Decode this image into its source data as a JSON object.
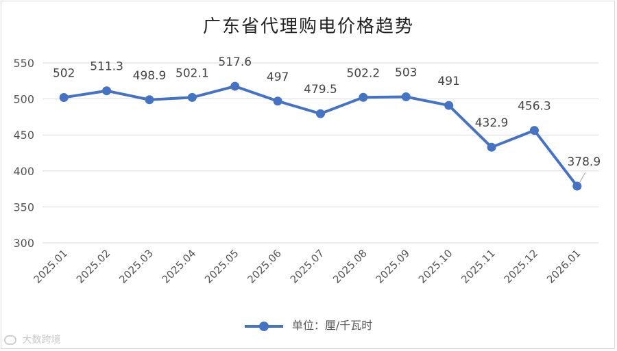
{
  "chart_data": {
    "type": "line",
    "title": "广东省代理购电价格趋势",
    "categories": [
      "2025.01",
      "2025.02",
      "2025.03",
      "2025.04",
      "2025.05",
      "2025.06",
      "2025.07",
      "2025.08",
      "2025.09",
      "2025.10",
      "2025.11",
      "2025.12",
      "2026.01"
    ],
    "series": [
      {
        "name": "单位：厘/千瓦时",
        "values": [
          502,
          511.3,
          498.9,
          502.1,
          517.6,
          497,
          479.5,
          502.2,
          503,
          491,
          432.9,
          456.3,
          378.9
        ],
        "labels": [
          "502",
          "511.3",
          "498.9",
          "502.1",
          "517.6",
          "497",
          "479.5",
          "502.2",
          "503",
          "491",
          "432.9",
          "456.3",
          "378.9"
        ],
        "color": "#4472c4"
      }
    ],
    "yticks": [
      "300",
      "350",
      "400",
      "450",
      "500",
      "550"
    ],
    "ylim": [
      300,
      550
    ],
    "grid": true,
    "legend_position": "bottom",
    "xlabel": "",
    "ylabel": ""
  },
  "legend": {
    "label": "单位：厘/千瓦时"
  },
  "watermark": {
    "text": "大数跨境"
  }
}
